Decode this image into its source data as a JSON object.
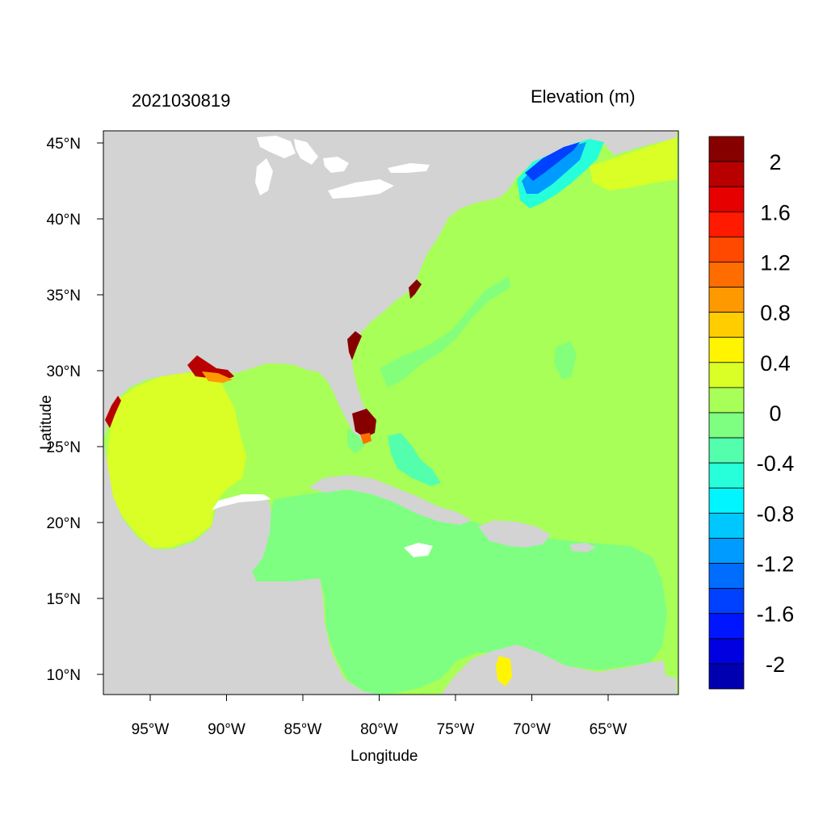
{
  "header": {
    "datetime": "2021030819",
    "variable": "Elevation (m)"
  },
  "axes": {
    "xlabel": "Longitude",
    "ylabel": "Latitude",
    "x_ticks": [
      {
        "value": -95,
        "label": "95°W"
      },
      {
        "value": -90,
        "label": "90°W"
      },
      {
        "value": -85,
        "label": "85°W"
      },
      {
        "value": -80,
        "label": "80°W"
      },
      {
        "value": -75,
        "label": "75°W"
      },
      {
        "value": -70,
        "label": "70°W"
      },
      {
        "value": -65,
        "label": "65°W"
      }
    ],
    "y_ticks": [
      {
        "value": 45,
        "label": "45°N"
      },
      {
        "value": 40,
        "label": "40°N"
      },
      {
        "value": 35,
        "label": "35°N"
      },
      {
        "value": 30,
        "label": "30°N"
      },
      {
        "value": 25,
        "label": "25°N"
      },
      {
        "value": 20,
        "label": "20°N"
      },
      {
        "value": 15,
        "label": "15°N"
      },
      {
        "value": 10,
        "label": "10°N"
      }
    ]
  },
  "colorbar": {
    "colors": [
      "#870000",
      "#b90000",
      "#e60000",
      "#ff1a00",
      "#ff4800",
      "#ff6d00",
      "#ff9900",
      "#ffcd00",
      "#fff500",
      "#d9ff26",
      "#a8ff57",
      "#7eff81",
      "#53ffac",
      "#26ffd9",
      "#00f5ff",
      "#00c8ff",
      "#009bff",
      "#006dff",
      "#0040ff",
      "#0016ff",
      "#0000e0",
      "#0000b0"
    ],
    "labels": [
      "2",
      "1.6",
      "1.2",
      "0.8",
      "0.4",
      "0",
      "-0.4",
      "-0.8",
      "-1.2",
      "-1.6",
      "-2"
    ]
  },
  "colors": {
    "land": "#d3d3d3",
    "background": "#ffffff"
  }
}
